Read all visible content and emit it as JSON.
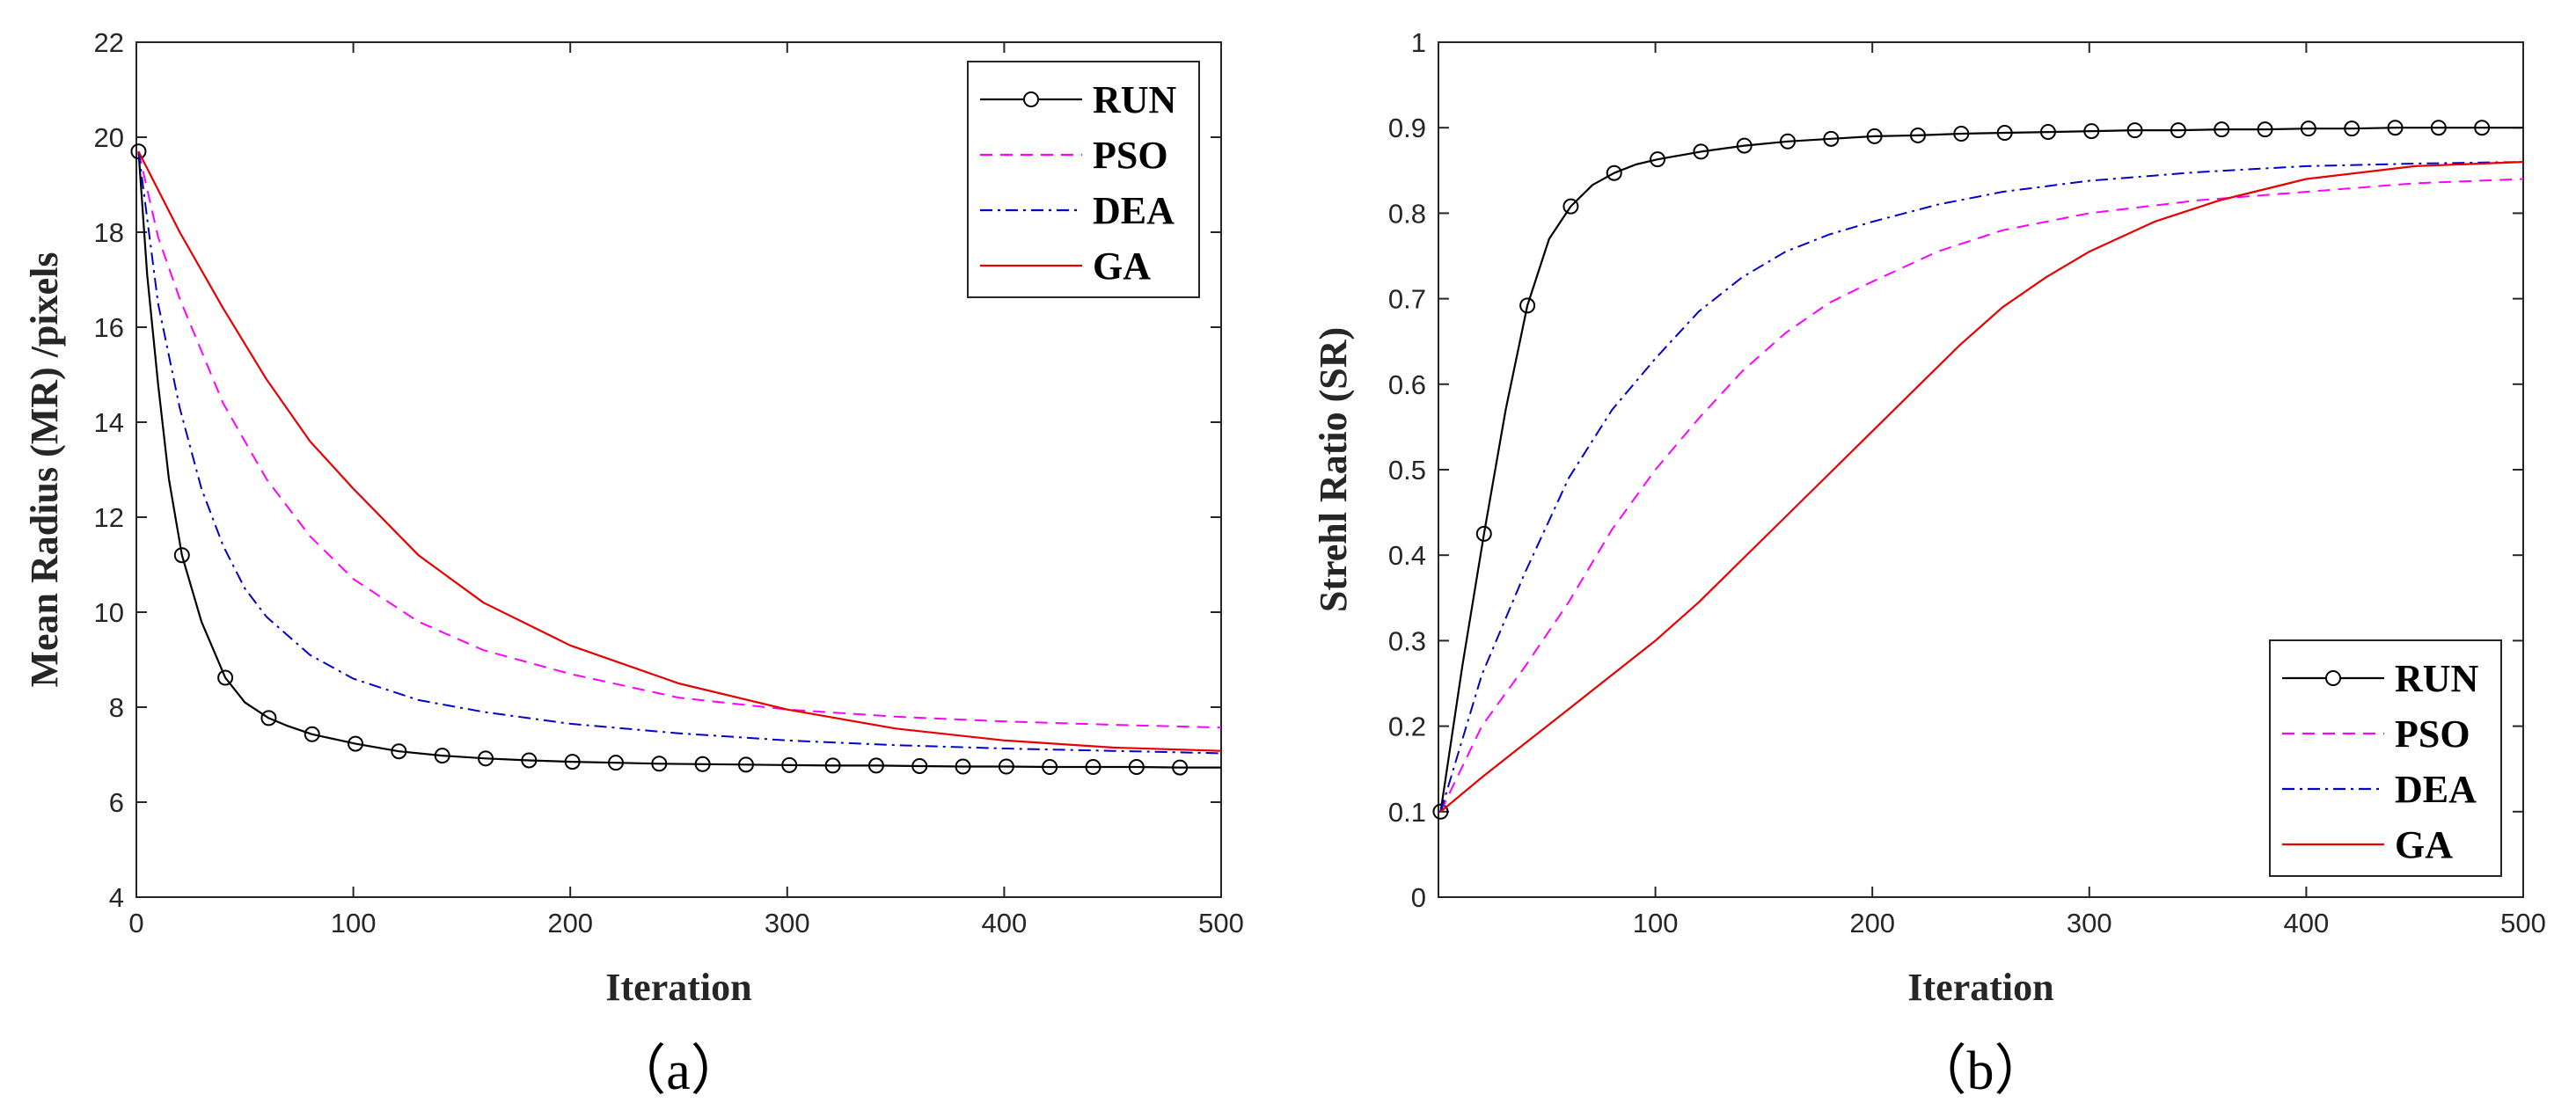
{
  "chart_data": [
    {
      "type": "line",
      "caption": "（a）",
      "xlabel": "Iteration",
      "ylabel": "Mean Radius (MR) /pixels",
      "xlim": [
        0,
        500
      ],
      "ylim": [
        4,
        22
      ],
      "xticks": [
        0,
        100,
        200,
        300,
        400,
        500
      ],
      "yticks": [
        4,
        6,
        8,
        10,
        12,
        14,
        16,
        18,
        20,
        22
      ],
      "legend_position": "top-right",
      "series": [
        {
          "name": "RUN",
          "style": "solid-circle",
          "color": "#000000",
          "x": [
            1,
            5,
            10,
            15,
            21,
            30,
            41,
            50,
            61,
            70,
            81,
            101,
            121,
            141,
            161,
            181,
            201,
            221,
            241,
            261,
            281,
            301,
            321,
            341,
            361,
            381,
            401,
            421,
            441,
            461,
            481,
            500
          ],
          "y": [
            19.7,
            17.1,
            14.8,
            12.8,
            11.2,
            9.8,
            8.62,
            8.1,
            7.77,
            7.6,
            7.43,
            7.23,
            7.07,
            6.98,
            6.92,
            6.88,
            6.85,
            6.83,
            6.81,
            6.8,
            6.79,
            6.78,
            6.77,
            6.77,
            6.76,
            6.75,
            6.75,
            6.74,
            6.74,
            6.74,
            6.73,
            6.73
          ],
          "markers": [
            1,
            21,
            41,
            61,
            81,
            101,
            121,
            141,
            161,
            181,
            201,
            221,
            241,
            261,
            281,
            301,
            321,
            341,
            361,
            381,
            401,
            421,
            441,
            461,
            481
          ]
        },
        {
          "name": "PSO",
          "style": "dashed",
          "color": "#ff00ff",
          "x": [
            1,
            10,
            20,
            40,
            60,
            80,
            100,
            130,
            160,
            200,
            250,
            300,
            350,
            400,
            450,
            500
          ],
          "y": [
            19.7,
            17.9,
            16.6,
            14.4,
            12.8,
            11.6,
            10.7,
            9.8,
            9.2,
            8.7,
            8.2,
            7.95,
            7.8,
            7.7,
            7.63,
            7.57
          ]
        },
        {
          "name": "DEA",
          "style": "dashdot",
          "color": "#0000cc",
          "x": [
            1,
            10,
            20,
            30,
            40,
            50,
            60,
            80,
            100,
            130,
            160,
            200,
            250,
            300,
            350,
            400,
            450,
            500
          ],
          "y": [
            19.7,
            16.5,
            14.3,
            12.6,
            11.4,
            10.5,
            9.9,
            9.1,
            8.6,
            8.15,
            7.9,
            7.65,
            7.45,
            7.3,
            7.2,
            7.13,
            7.08,
            7.03
          ]
        },
        {
          "name": "GA",
          "style": "solid",
          "color": "#e60000",
          "x": [
            1,
            20,
            40,
            60,
            80,
            100,
            130,
            160,
            200,
            250,
            300,
            350,
            400,
            450,
            500
          ],
          "y": [
            19.7,
            18.0,
            16.4,
            14.9,
            13.6,
            12.6,
            11.2,
            10.2,
            9.3,
            8.5,
            7.95,
            7.55,
            7.3,
            7.15,
            7.08
          ]
        }
      ]
    },
    {
      "type": "line",
      "caption": "（b）",
      "xlabel": "Iteration",
      "ylabel": "Strehl Ratio (SR)",
      "xlim": [
        0,
        500
      ],
      "ylim": [
        0,
        1
      ],
      "xticks": [
        100,
        200,
        300,
        400,
        500
      ],
      "yticks": [
        0,
        0.1,
        0.2,
        0.3,
        0.4,
        0.5,
        0.6,
        0.7,
        0.8,
        0.9,
        1
      ],
      "ytick_labels": [
        "0",
        "0.1",
        "0.2",
        "0.3",
        "0.4",
        "0.5",
        "0.6",
        "0.7",
        "0.8",
        "0.9",
        "1"
      ],
      "legend_position": "bottom-right",
      "series": [
        {
          "name": "RUN",
          "style": "solid-circle",
          "color": "#000000",
          "x": [
            1,
            11,
            21,
            31,
            41,
            51,
            61,
            71,
            81,
            91,
            101,
            121,
            141,
            161,
            181,
            201,
            221,
            241,
            261,
            281,
            301,
            321,
            341,
            361,
            381,
            401,
            421,
            441,
            461,
            481,
            500
          ],
          "y": [
            0.1,
            0.27,
            0.425,
            0.57,
            0.692,
            0.77,
            0.808,
            0.833,
            0.847,
            0.857,
            0.863,
            0.872,
            0.879,
            0.884,
            0.887,
            0.89,
            0.891,
            0.893,
            0.894,
            0.895,
            0.896,
            0.897,
            0.897,
            0.898,
            0.898,
            0.899,
            0.899,
            0.9,
            0.9,
            0.9,
            0.9
          ],
          "markers": [
            1,
            21,
            41,
            61,
            81,
            101,
            121,
            141,
            161,
            181,
            201,
            221,
            241,
            261,
            281,
            301,
            321,
            341,
            361,
            381,
            401,
            421,
            441,
            461,
            481
          ]
        },
        {
          "name": "PSO",
          "style": "dashed",
          "color": "#ff00ff",
          "x": [
            1,
            20,
            40,
            60,
            80,
            100,
            120,
            140,
            160,
            180,
            200,
            230,
            260,
            300,
            350,
            400,
            450,
            500
          ],
          "y": [
            0.1,
            0.2,
            0.27,
            0.345,
            0.43,
            0.5,
            0.56,
            0.615,
            0.66,
            0.695,
            0.72,
            0.755,
            0.78,
            0.8,
            0.815,
            0.825,
            0.835,
            0.84
          ]
        },
        {
          "name": "DEA",
          "style": "dashdot",
          "color": "#0000cc",
          "x": [
            1,
            20,
            40,
            60,
            80,
            100,
            120,
            140,
            160,
            180,
            200,
            230,
            260,
            300,
            350,
            400,
            450,
            500
          ],
          "y": [
            0.1,
            0.26,
            0.38,
            0.49,
            0.57,
            0.63,
            0.685,
            0.725,
            0.755,
            0.775,
            0.79,
            0.81,
            0.825,
            0.838,
            0.848,
            0.855,
            0.858,
            0.86
          ]
        },
        {
          "name": "GA",
          "style": "solid",
          "color": "#e60000",
          "x": [
            1,
            20,
            40,
            60,
            80,
            100,
            120,
            140,
            160,
            180,
            200,
            220,
            240,
            260,
            280,
            300,
            330,
            360,
            400,
            450,
            500
          ],
          "y": [
            0.1,
            0.14,
            0.18,
            0.22,
            0.26,
            0.3,
            0.345,
            0.395,
            0.445,
            0.495,
            0.545,
            0.595,
            0.645,
            0.69,
            0.725,
            0.755,
            0.79,
            0.815,
            0.84,
            0.855,
            0.86
          ]
        }
      ]
    }
  ]
}
